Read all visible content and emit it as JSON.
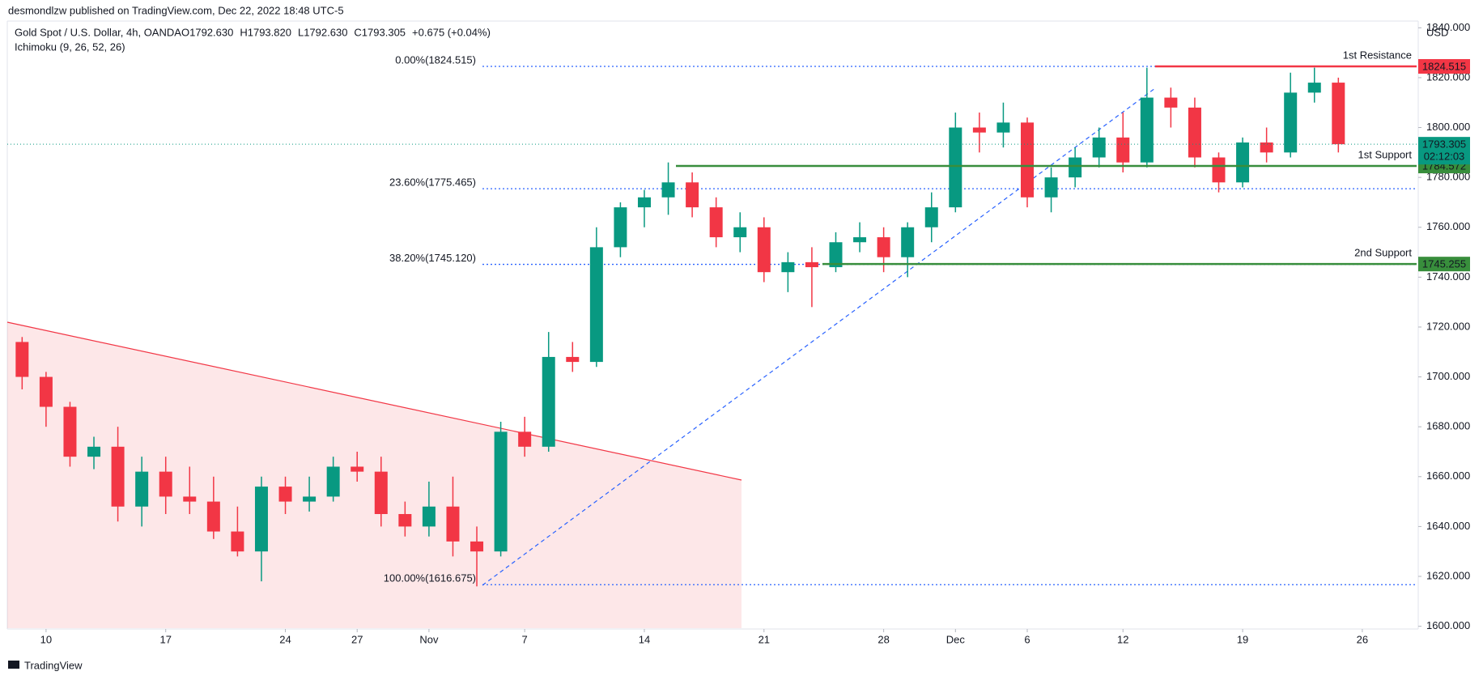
{
  "header": {
    "published": "desmondlzw published on TradingView.com, Dec 22, 2022 18:48 UTC-5",
    "symbol": "Gold Spot / U.S. Dollar, 4h, OANDA",
    "ohlc": [
      "O1792.630",
      "H1793.820",
      "L1792.630",
      "C1793.305",
      "+0.675 (+0.04%)"
    ],
    "indicator": "Ichimoku (9, 26, 52, 26)"
  },
  "footer": "TradingView",
  "chart_data": {
    "type": "candlestick",
    "currency": "USD",
    "up_color": "#089981",
    "down_color": "#f23645",
    "x": [
      -1,
      0,
      1,
      2,
      3,
      4,
      5,
      6,
      7,
      8,
      9,
      10,
      11,
      12,
      13,
      14,
      15,
      16,
      17,
      18,
      19,
      20,
      21,
      22,
      23,
      24,
      25,
      26,
      27,
      28,
      29,
      30,
      31,
      32,
      33,
      34,
      35,
      36,
      37,
      38,
      39,
      40,
      41,
      42,
      43,
      44,
      45,
      46,
      47,
      48,
      49,
      50,
      51,
      52,
      53,
      54
    ],
    "open": [
      1714,
      1700,
      1688,
      1668,
      1672,
      1648,
      1662,
      1652,
      1650,
      1638,
      1630,
      1656,
      1650,
      1652,
      1664,
      1662,
      1645,
      1640,
      1648,
      1634,
      1630,
      1678,
      1672,
      1708,
      1706,
      1752,
      1768,
      1772,
      1778,
      1768,
      1756,
      1760,
      1742,
      1746,
      1744,
      1754,
      1756,
      1748,
      1760,
      1768,
      1800,
      1798,
      1802,
      1772,
      1780,
      1788,
      1796,
      1786,
      1812,
      1808,
      1788,
      1778,
      1794,
      1790,
      1814,
      1818
    ],
    "high": [
      1716,
      1702,
      1690,
      1676,
      1680,
      1668,
      1668,
      1664,
      1660,
      1648,
      1660,
      1660,
      1660,
      1668,
      1670,
      1668,
      1650,
      1658,
      1660,
      1640,
      1682,
      1684,
      1718,
      1714,
      1760,
      1770,
      1775,
      1786,
      1782,
      1772,
      1766,
      1764,
      1750,
      1752,
      1758,
      1762,
      1760,
      1762,
      1774,
      1806,
      1806,
      1810,
      1804,
      1784,
      1792,
      1800,
      1806,
      1824,
      1816,
      1812,
      1790,
      1796,
      1800,
      1822,
      1824,
      1820
    ],
    "low": [
      1695,
      1680,
      1664,
      1663,
      1642,
      1640,
      1645,
      1645,
      1635,
      1628,
      1618,
      1645,
      1646,
      1650,
      1658,
      1640,
      1636,
      1636,
      1628,
      1616,
      1628,
      1668,
      1670,
      1702,
      1704,
      1748,
      1760,
      1765,
      1764,
      1752,
      1750,
      1738,
      1734,
      1728,
      1742,
      1750,
      1742,
      1740,
      1754,
      1766,
      1790,
      1792,
      1768,
      1766,
      1776,
      1784,
      1782,
      1784,
      1800,
      1784,
      1774,
      1776,
      1786,
      1788,
      1810,
      1790
    ],
    "close": [
      1700,
      1688,
      1668,
      1672,
      1648,
      1662,
      1652,
      1650,
      1638,
      1630,
      1656,
      1650,
      1652,
      1664,
      1662,
      1645,
      1640,
      1648,
      1634,
      1630,
      1678,
      1672,
      1708,
      1706,
      1752,
      1768,
      1772,
      1778,
      1768,
      1756,
      1760,
      1742,
      1746,
      1744,
      1754,
      1756,
      1748,
      1760,
      1768,
      1800,
      1798,
      1802,
      1772,
      1780,
      1788,
      1796,
      1786,
      1812,
      1808,
      1788,
      1778,
      1794,
      1790,
      1814,
      1818,
      1793.305
    ],
    "countdown": "02:12:03",
    "xlim": [
      -1.62,
      57.27
    ],
    "ylim": [
      1598.9,
      1842.7
    ],
    "xticks": [
      {
        "value": 0,
        "label": "10"
      },
      {
        "value": 5,
        "label": "17"
      },
      {
        "value": 10,
        "label": "24"
      },
      {
        "value": 13,
        "label": "27"
      },
      {
        "value": 16,
        "label": "Nov"
      },
      {
        "value": 20,
        "label": "7"
      },
      {
        "value": 25,
        "label": "14"
      },
      {
        "value": 30,
        "label": "21"
      },
      {
        "value": 35,
        "label": "28"
      },
      {
        "value": 38,
        "label": "Dec"
      },
      {
        "value": 41,
        "label": "6"
      },
      {
        "value": 45,
        "label": "12"
      },
      {
        "value": 50,
        "label": "19"
      },
      {
        "value": 55,
        "label": "26"
      }
    ],
    "yticks": [
      {
        "value": 1600,
        "label": "1600.000"
      },
      {
        "value": 1620,
        "label": "1620.000"
      },
      {
        "value": 1640,
        "label": "1640.000"
      },
      {
        "value": 1660,
        "label": "1660.000"
      },
      {
        "value": 1680,
        "label": "1680.000"
      },
      {
        "value": 1700,
        "label": "1700.000"
      },
      {
        "value": 1720,
        "label": "1720.000"
      },
      {
        "value": 1740,
        "label": "1740.000"
      },
      {
        "value": 1760,
        "label": "1760.000"
      },
      {
        "value": 1780,
        "label": "1780.000"
      },
      {
        "value": 1800,
        "label": "1800.000"
      },
      {
        "value": 1820,
        "label": "1820.000"
      },
      {
        "value": 1840,
        "label": "1840.000"
      }
    ],
    "fib_levels": [
      {
        "label": "0.00%(1824.515)",
        "value": 1824.515
      },
      {
        "label": "23.60%(1775.465)",
        "value": 1775.465
      },
      {
        "label": "38.20%(1745.120)",
        "value": 1745.12
      },
      {
        "label": "100.00%(1616.675)",
        "value": 1616.675
      }
    ],
    "levels": [
      {
        "name": "1st Resistance",
        "value": 1824.515,
        "color": "#f23645"
      },
      {
        "name": "1st Support",
        "value": 1784.572,
        "color": "#388e3c"
      },
      {
        "name": "2nd Support",
        "value": 1745.255,
        "color": "#388e3c"
      }
    ]
  }
}
